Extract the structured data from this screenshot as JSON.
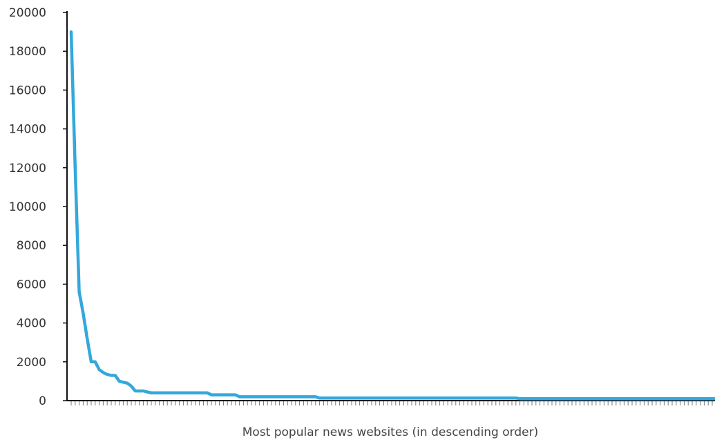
{
  "chart_data": {
    "type": "line",
    "title": "",
    "xlabel": "Most popular news websites (in descending order)",
    "ylabel": "",
    "ylim": [
      0,
      20000
    ],
    "yticks": [
      "0",
      "2000",
      "4000",
      "6000",
      "8000",
      "10000",
      "12000",
      "14000",
      "16000",
      "18000",
      "20000"
    ],
    "grid": false,
    "legend": "none",
    "line_color": "#33a8dc",
    "x_count": 162,
    "series": [
      {
        "values": [
          19000,
          12000,
          5600,
          4500,
          3200,
          2000,
          2000,
          1600,
          1450,
          1350,
          1300,
          1300,
          1000,
          950,
          900,
          750,
          500,
          500,
          500,
          450,
          400,
          400,
          400,
          400,
          400,
          400,
          400,
          400,
          400,
          400,
          400,
          400,
          400,
          400,
          400,
          300,
          300,
          300,
          300,
          300,
          300,
          300,
          200,
          200,
          200,
          200,
          200,
          200,
          200,
          200,
          200,
          200,
          200,
          200,
          200,
          200,
          200,
          200,
          200,
          200,
          200,
          200,
          130,
          130,
          130,
          130,
          130,
          130,
          130,
          130,
          130,
          130,
          130,
          130,
          130,
          130,
          130,
          130,
          130,
          130,
          130,
          130,
          130,
          130,
          130,
          130,
          130,
          130,
          130,
          130,
          130,
          130,
          130,
          130,
          130,
          130,
          130,
          130,
          130,
          130,
          130,
          130,
          130,
          130,
          130,
          130,
          130,
          130,
          130,
          130,
          130,
          130,
          100,
          100,
          100,
          100,
          100,
          100,
          100,
          100,
          100,
          100,
          100,
          100,
          100,
          100,
          100,
          100,
          100,
          100,
          100,
          100,
          100,
          100,
          100,
          100,
          100,
          100,
          100,
          100,
          100,
          100,
          100,
          100,
          100,
          100,
          100,
          100,
          100,
          100,
          100,
          100,
          100,
          100,
          100,
          100,
          100,
          100,
          100,
          100,
          100,
          100
        ]
      }
    ]
  }
}
